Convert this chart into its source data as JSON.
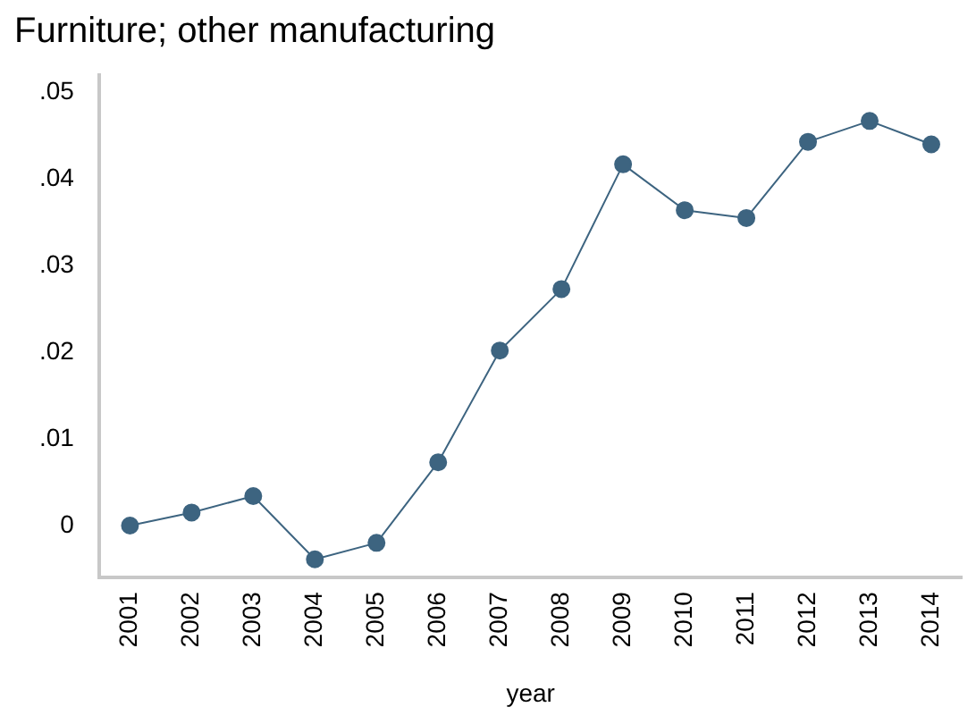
{
  "chart_data": {
    "type": "line",
    "title": "Furniture; other manufacturing",
    "xlabel": "year",
    "categories": [
      "2001",
      "2002",
      "2003",
      "2004",
      "2005",
      "2006",
      "2007",
      "2008",
      "2009",
      "2010",
      "2011",
      "2012",
      "2013",
      "2014"
    ],
    "series": [
      {
        "color": "#3d6480",
        "values": [
          0,
          0.0015,
          0.0034,
          -0.0039,
          -0.002,
          0.0073,
          0.0202,
          0.0273,
          0.0417,
          0.0364,
          0.0355,
          0.0443,
          0.0467,
          0.044
        ]
      }
    ],
    "ylim": [
      -0.006,
      0.052
    ],
    "yticks": [
      {
        "value": 0,
        "label": "0"
      },
      {
        "value": 0.01,
        "label": ".01"
      },
      {
        "value": 0.02,
        "label": ".02"
      },
      {
        "value": 0.03,
        "label": ".03"
      },
      {
        "value": 0.04,
        "label": ".04"
      },
      {
        "value": 0.05,
        "label": ".05"
      }
    ],
    "grid": false,
    "legend": false,
    "marker": "circle",
    "line_style": "solid"
  }
}
